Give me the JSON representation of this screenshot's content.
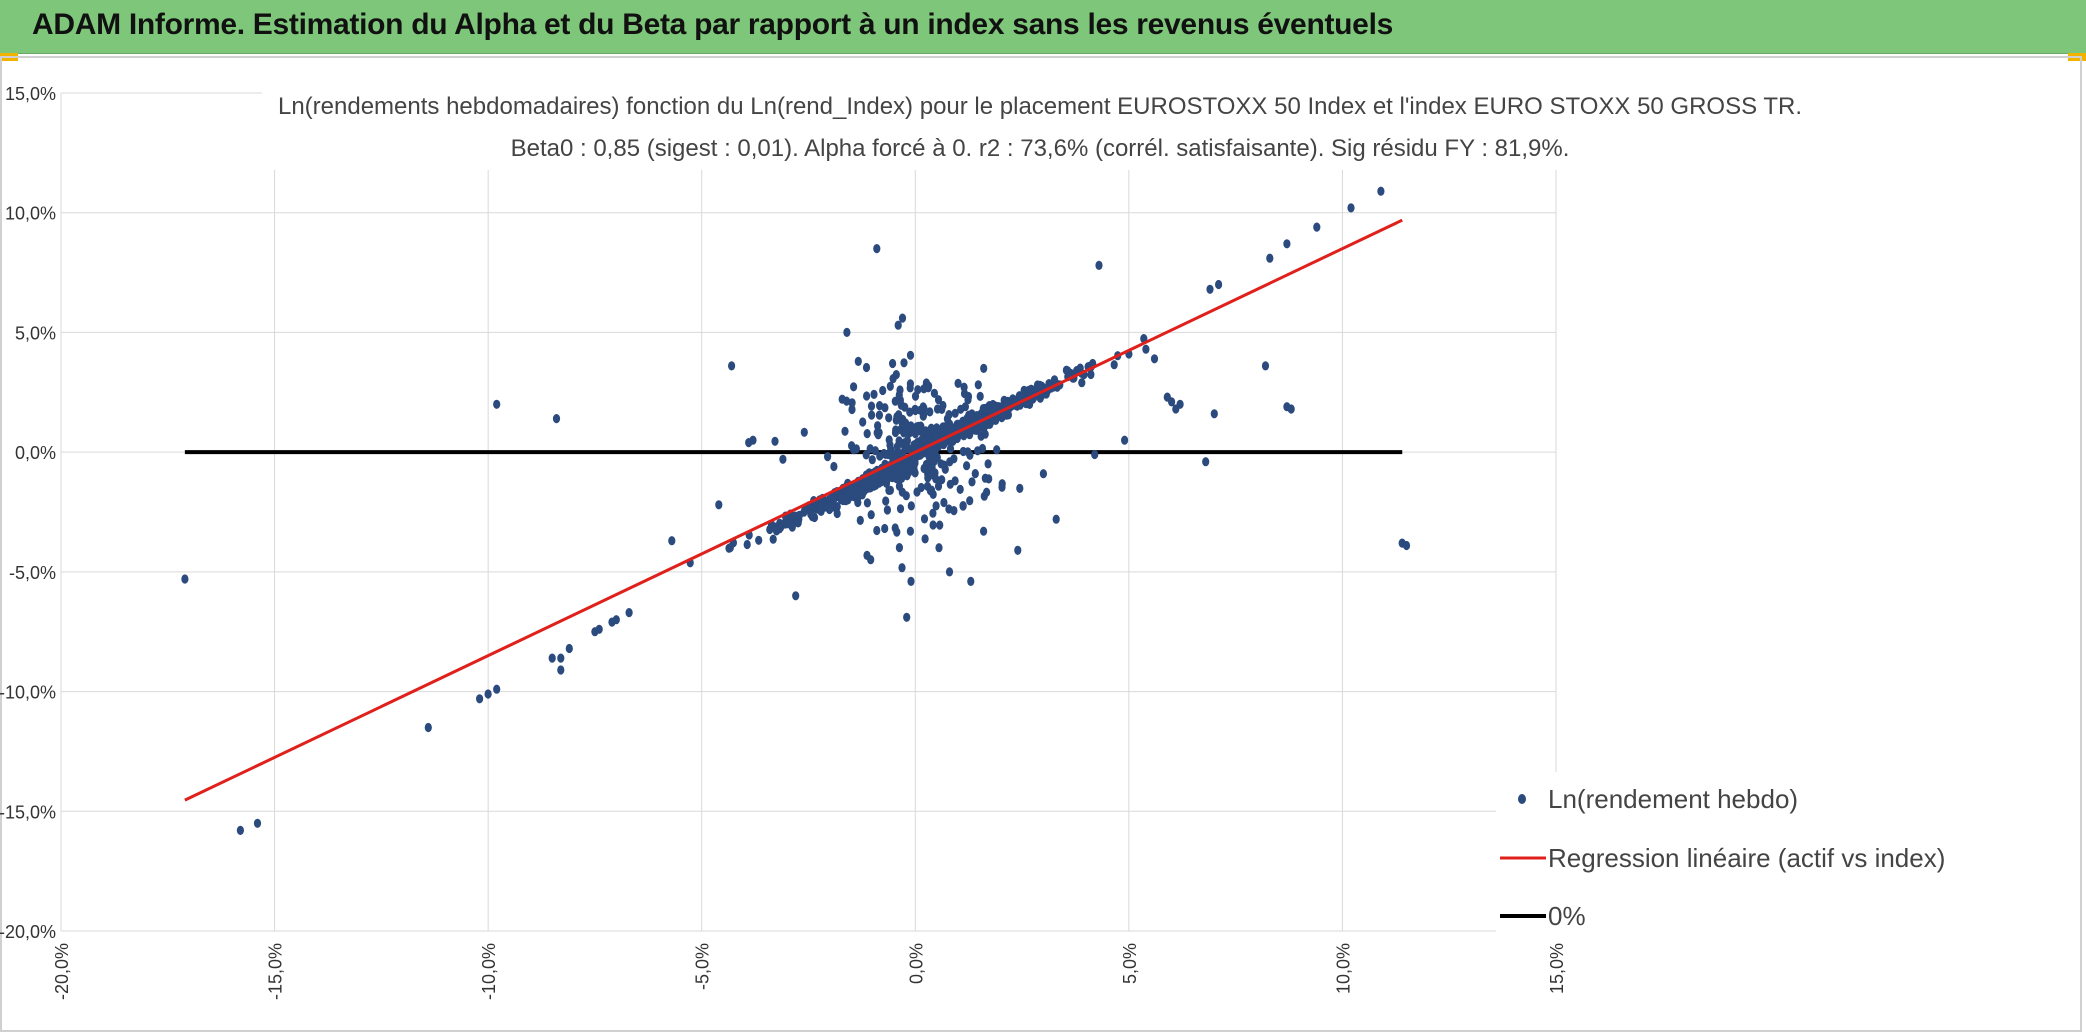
{
  "header": {
    "title": "ADAM Informe. Estimation du Alpha et du Beta par rapport à un index sans les revenus éventuels"
  },
  "colors": {
    "header_bg": "#7ec77a",
    "points": "#2b4a7e",
    "regression": "#e0201b",
    "zero_line": "#000000",
    "grid": "#d9d9d9"
  },
  "chart_data": {
    "type": "scatter",
    "title_line1": "Ln(rendements hebdomadaires) fonction du Ln(rend_Index) pour le placement EUROSTOXX 50 Index et l'index EURO STOXX 50 GROSS TR.",
    "title_line2": "Beta0 : 0,85 (sigest : 0,01). Alpha forcé à 0. r2 : 73,6% (corrél. satisfaisante). Sig résidu FY : 81,9%.",
    "xlim": [
      -20,
      15
    ],
    "ylim": [
      -20,
      15
    ],
    "x_ticks": [
      "-20,0%",
      "-15,0%",
      "-10,0%",
      "-5,0%",
      "0,0%",
      "5,0%",
      "10,0%",
      "15,0%"
    ],
    "y_ticks": [
      "15,0%",
      "10,0%",
      "5,0%",
      "0,0%",
      "-5,0%",
      "-10,0%",
      "-15,0%",
      "-20,0%"
    ],
    "grid": true,
    "legend_position": "bottom-right",
    "legend": [
      "Ln(rendement hebdo)",
      "Regression linéaire (actif vs index)",
      "0%"
    ],
    "regression": {
      "beta": 0.85,
      "alpha": 0,
      "x_range": [
        -17.1,
        11.4
      ]
    },
    "zero_line": {
      "y": 0,
      "x_range": [
        -17.1,
        11.4
      ]
    },
    "outliers": [
      [
        -17.1,
        -5.3
      ],
      [
        -15.8,
        -15.8
      ],
      [
        -15.4,
        -15.5
      ],
      [
        -11.4,
        -11.5
      ],
      [
        -10.2,
        -10.3
      ],
      [
        -10.0,
        -10.1
      ],
      [
        -9.8,
        -9.9
      ],
      [
        -9.8,
        2.0
      ],
      [
        -8.4,
        1.4
      ],
      [
        -8.5,
        -8.6
      ],
      [
        -8.3,
        -8.6
      ],
      [
        -8.3,
        -9.1
      ],
      [
        -8.1,
        -8.2
      ],
      [
        -7.5,
        -7.5
      ],
      [
        -7.4,
        -7.4
      ],
      [
        -7.1,
        -7.1
      ],
      [
        -7.0,
        -7.0
      ],
      [
        -6.7,
        -6.7
      ],
      [
        -4.3,
        3.6
      ],
      [
        -3.9,
        0.4
      ],
      [
        -3.8,
        0.5
      ],
      [
        -3.1,
        -0.3
      ],
      [
        -4.6,
        -2.2
      ],
      [
        -5.7,
        -3.7
      ],
      [
        -2.8,
        -6.0
      ],
      [
        -1.6,
        5.0
      ],
      [
        -0.9,
        8.5
      ],
      [
        -0.4,
        5.3
      ],
      [
        -0.3,
        5.6
      ],
      [
        -0.2,
        -6.9
      ],
      [
        -0.1,
        -5.4
      ],
      [
        0.8,
        -5.0
      ],
      [
        1.3,
        -5.4
      ],
      [
        1.6,
        -3.3
      ],
      [
        2.4,
        -4.1
      ],
      [
        3.0,
        -0.9
      ],
      [
        3.3,
        -2.8
      ],
      [
        4.3,
        7.8
      ],
      [
        4.2,
        -0.1
      ],
      [
        4.9,
        0.5
      ],
      [
        5.0,
        4.1
      ],
      [
        5.4,
        4.3
      ],
      [
        5.6,
        3.9
      ],
      [
        5.9,
        2.3
      ],
      [
        6.0,
        2.1
      ],
      [
        6.1,
        1.8
      ],
      [
        6.2,
        2.0
      ],
      [
        6.8,
        -0.4
      ],
      [
        7.0,
        1.6
      ],
      [
        8.2,
        3.6
      ],
      [
        8.7,
        1.9
      ],
      [
        8.8,
        1.8
      ],
      [
        8.3,
        8.1
      ],
      [
        8.7,
        8.7
      ],
      [
        9.4,
        9.4
      ],
      [
        10.2,
        10.2
      ],
      [
        10.9,
        10.9
      ],
      [
        11.4,
        -3.8
      ],
      [
        11.5,
        -3.9
      ],
      [
        6.9,
        6.8
      ],
      [
        7.1,
        7.0
      ]
    ],
    "series": [
      {
        "name": "Ln(rendement hebdo)",
        "points": "outliers plus a dense cloud of approximately 1000 weekly observations concentrated between -3% and +4% on both axes"
      }
    ]
  }
}
